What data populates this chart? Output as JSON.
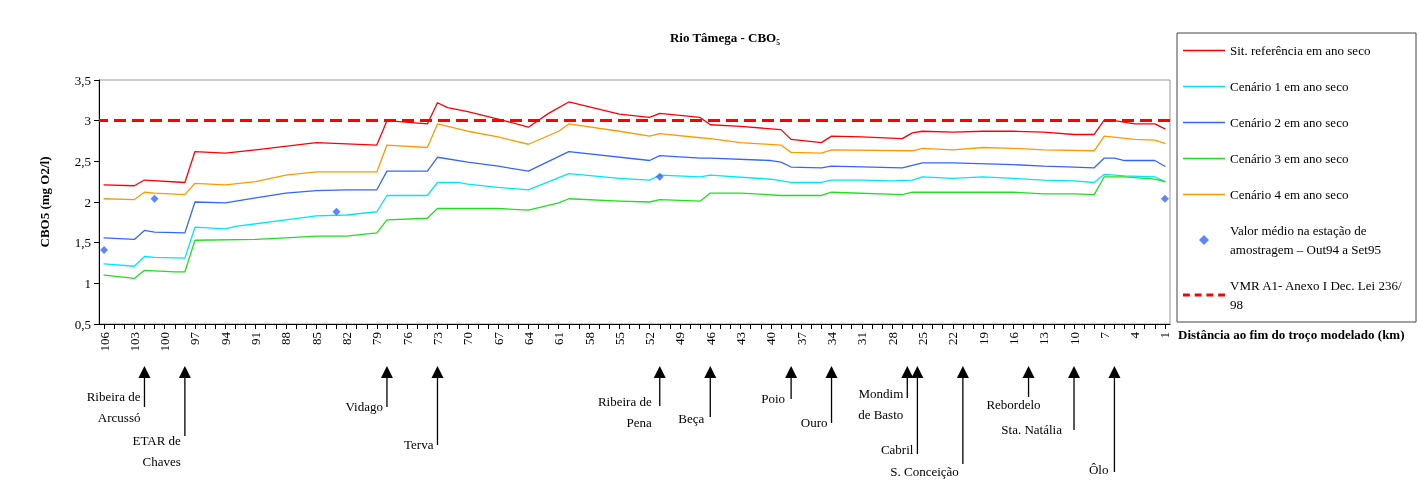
{
  "chart_data": {
    "type": "line",
    "title": "Rio Tâmega - CBO₅",
    "xlabel": "Distância ao fim do troço modelado (km)",
    "ylabel": "CBO5 (mg O2/l)",
    "xlim": [
      106.5,
      0.5
    ],
    "xticks": [
      106,
      {
        "value": 105,
        "label": null
      },
      {
        "value": 104,
        "label": null
      },
      103,
      {
        "value": 102,
        "label": null
      },
      {
        "value": 101,
        "label": null
      },
      100,
      {
        "value": 99,
        "label": null
      },
      {
        "value": 98,
        "label": null
      },
      97,
      {
        "value": 96,
        "label": null
      },
      {
        "value": 95,
        "label": null
      },
      94,
      {
        "value": 93,
        "label": null
      },
      {
        "value": 92,
        "label": null
      },
      91,
      {
        "value": 90,
        "label": null
      },
      {
        "value": 89,
        "label": null
      },
      88,
      {
        "value": 87,
        "label": null
      },
      {
        "value": 86,
        "label": null
      },
      85,
      {
        "value": 84,
        "label": null
      },
      {
        "value": 83,
        "label": null
      },
      82,
      {
        "value": 81,
        "label": null
      },
      {
        "value": 80,
        "label": null
      },
      79,
      {
        "value": 78,
        "label": null
      },
      {
        "value": 77,
        "label": null
      },
      76,
      {
        "value": 75,
        "label": null
      },
      {
        "value": 74,
        "label": null
      },
      73,
      {
        "value": 72,
        "label": null
      },
      {
        "value": 71,
        "label": null
      },
      70,
      {
        "value": 69,
        "label": null
      },
      {
        "value": 68,
        "label": null
      },
      67,
      {
        "value": 66,
        "label": null
      },
      {
        "value": 65,
        "label": null
      },
      64,
      {
        "value": 63,
        "label": null
      },
      {
        "value": 62,
        "label": null
      },
      61,
      {
        "value": 60,
        "label": null
      },
      {
        "value": 59,
        "label": null
      },
      58,
      {
        "value": 57,
        "label": null
      },
      {
        "value": 56,
        "label": null
      },
      55,
      {
        "value": 54,
        "label": null
      },
      {
        "value": 53,
        "label": null
      },
      52,
      {
        "value": 51,
        "label": null
      },
      {
        "value": 50,
        "label": null
      },
      49,
      {
        "value": 48,
        "label": null
      },
      {
        "value": 47,
        "label": null
      },
      46,
      {
        "value": 45,
        "label": null
      },
      {
        "value": 44,
        "label": null
      },
      43,
      {
        "value": 42,
        "label": null
      },
      {
        "value": 41,
        "label": null
      },
      40,
      {
        "value": 39,
        "label": null
      },
      {
        "value": 38,
        "label": null
      },
      37,
      {
        "value": 36,
        "label": null
      },
      {
        "value": 35,
        "label": null
      },
      34,
      {
        "value": 33,
        "label": null
      },
      {
        "value": 32,
        "label": null
      },
      31,
      {
        "value": 30,
        "label": null
      },
      {
        "value": 29,
        "label": null
      },
      28,
      {
        "value": 27,
        "label": null
      },
      {
        "value": 26,
        "label": null
      },
      25,
      {
        "value": 24,
        "label": null
      },
      {
        "value": 23,
        "label": null
      },
      22,
      {
        "value": 21,
        "label": null
      },
      {
        "value": 20,
        "label": null
      },
      19,
      {
        "value": 18,
        "label": null
      },
      {
        "value": 17,
        "label": null
      },
      16,
      {
        "value": 15,
        "label": null
      },
      {
        "value": 14,
        "label": null
      },
      13,
      {
        "value": 12,
        "label": null
      },
      {
        "value": 11,
        "label": null
      },
      10,
      {
        "value": 9,
        "label": null
      },
      {
        "value": 8,
        "label": null
      },
      7,
      {
        "value": 6,
        "label": null
      },
      {
        "value": 5,
        "label": null
      },
      4,
      {
        "value": 3,
        "label": null
      },
      {
        "value": 2,
        "label": null
      },
      1
    ],
    "ylim": [
      0.5,
      3.5
    ],
    "yticks": [
      {
        "value": 0.5,
        "label": "0,5"
      },
      1,
      {
        "value": 1.5,
        "label": "1,5"
      },
      2,
      {
        "value": 2.5,
        "label": "2,5"
      },
      3,
      {
        "value": 3.5,
        "label": "3,5"
      }
    ],
    "legend": "right",
    "marker": "none",
    "line_style": "solid",
    "series": [
      {
        "name": "Sit. referência em ano seco",
        "color": "#ff0000",
        "x": [
          106,
          103,
          102,
          98,
          97,
          94,
          91,
          85,
          79,
          78,
          74,
          73,
          72,
          70,
          67,
          64,
          62,
          60,
          55,
          52,
          51,
          47,
          46,
          43,
          40,
          39,
          38,
          35,
          34,
          31,
          27,
          26,
          25,
          22,
          19,
          16,
          13,
          10,
          8,
          7,
          6,
          4,
          2,
          1
        ],
        "values": [
          2.21,
          2.2,
          2.27,
          2.24,
          2.62,
          2.6,
          2.64,
          2.73,
          2.7,
          3.0,
          2.96,
          3.22,
          3.16,
          3.11,
          3.02,
          2.92,
          3.09,
          3.23,
          3.08,
          3.04,
          3.09,
          3.04,
          2.95,
          2.93,
          2.9,
          2.89,
          2.77,
          2.73,
          2.81,
          2.8,
          2.78,
          2.85,
          2.87,
          2.86,
          2.87,
          2.87,
          2.86,
          2.83,
          2.83,
          3.01,
          3.0,
          2.96,
          2.96,
          2.9
        ]
      },
      {
        "name": "Cenário 1 em ano seco",
        "color": "#00e5ff",
        "x": [
          106,
          103,
          102,
          101,
          98,
          97,
          94,
          93,
          88,
          85,
          82,
          79,
          78,
          74,
          73,
          71,
          70,
          67,
          64,
          60,
          55,
          52,
          51,
          47,
          46,
          40,
          38,
          35,
          34,
          31,
          28,
          26,
          25,
          22,
          19,
          16,
          13,
          10,
          8,
          7,
          5,
          2,
          1
        ],
        "values": [
          1.24,
          1.21,
          1.33,
          1.32,
          1.31,
          1.69,
          1.67,
          1.7,
          1.78,
          1.83,
          1.84,
          1.88,
          2.08,
          2.08,
          2.24,
          2.24,
          2.22,
          2.18,
          2.15,
          2.35,
          2.29,
          2.27,
          2.33,
          2.31,
          2.33,
          2.28,
          2.24,
          2.24,
          2.27,
          2.27,
          2.26,
          2.27,
          2.31,
          2.29,
          2.31,
          2.29,
          2.27,
          2.26,
          2.24,
          2.34,
          2.32,
          2.31,
          2.25
        ]
      },
      {
        "name": "Cenário 2 em ano seco",
        "color": "#3366ff",
        "x": [
          106,
          103,
          102,
          101,
          98,
          97,
          94,
          91,
          88,
          85,
          82,
          79,
          78,
          74,
          73,
          70,
          67,
          64,
          60,
          52,
          51,
          47,
          46,
          40,
          39,
          38,
          35,
          34,
          27,
          25,
          22,
          16,
          13,
          10,
          8,
          7,
          6,
          5,
          2,
          1
        ],
        "values": [
          1.56,
          1.54,
          1.65,
          1.63,
          1.62,
          2.0,
          1.99,
          2.05,
          2.11,
          2.14,
          2.15,
          2.15,
          2.38,
          2.38,
          2.55,
          2.49,
          2.44,
          2.38,
          2.62,
          2.51,
          2.57,
          2.54,
          2.54,
          2.51,
          2.49,
          2.43,
          2.42,
          2.44,
          2.42,
          2.48,
          2.48,
          2.46,
          2.44,
          2.43,
          2.42,
          2.54,
          2.54,
          2.51,
          2.51,
          2.44
        ]
      },
      {
        "name": "Cenário 3 em ano seco",
        "color": "#22dd22",
        "x": [
          106,
          103,
          102,
          99,
          98,
          97,
          91,
          88,
          85,
          82,
          79,
          78,
          74,
          73,
          67,
          64,
          61,
          60,
          55,
          52,
          51,
          47,
          46,
          43,
          39,
          35,
          34,
          27,
          26,
          22,
          16,
          13,
          10,
          8,
          7,
          5,
          2,
          1
        ],
        "values": [
          1.1,
          1.06,
          1.16,
          1.14,
          1.14,
          1.53,
          1.54,
          1.56,
          1.58,
          1.58,
          1.62,
          1.78,
          1.8,
          1.92,
          1.92,
          1.9,
          1.99,
          2.04,
          2.01,
          2.0,
          2.03,
          2.01,
          2.11,
          2.11,
          2.08,
          2.08,
          2.12,
          2.09,
          2.12,
          2.12,
          2.12,
          2.1,
          2.1,
          2.09,
          2.31,
          2.31,
          2.28,
          2.25
        ]
      },
      {
        "name": "Cenário 4 em ano seco",
        "color": "#ff9900",
        "x": [
          106,
          103,
          102,
          101,
          98,
          97,
          94,
          91,
          88,
          85,
          79,
          78,
          74,
          73,
          70,
          67,
          64,
          61,
          60,
          55,
          52,
          51,
          47,
          46,
          43,
          39,
          38,
          35,
          34,
          26,
          25,
          22,
          19,
          16,
          13,
          8,
          7,
          4,
          2,
          1
        ],
        "values": [
          2.04,
          2.03,
          2.12,
          2.11,
          2.09,
          2.23,
          2.21,
          2.25,
          2.33,
          2.37,
          2.37,
          2.7,
          2.67,
          2.96,
          2.87,
          2.8,
          2.71,
          2.87,
          2.96,
          2.87,
          2.81,
          2.84,
          2.79,
          2.78,
          2.73,
          2.7,
          2.61,
          2.6,
          2.64,
          2.63,
          2.66,
          2.64,
          2.67,
          2.66,
          2.64,
          2.63,
          2.81,
          2.77,
          2.76,
          2.72
        ]
      },
      {
        "name": "Valor médio na estação de amostragem – Out94 a Set95",
        "type": "scatter",
        "marker": "diamond",
        "color": "#3366ff",
        "x": [
          106,
          101,
          83,
          51,
          1
        ],
        "values": [
          1.41,
          2.04,
          1.88,
          2.31,
          2.04
        ]
      }
    ],
    "ref_lines": [
      {
        "axis": "y",
        "value": 3,
        "label": "VMR A1- Anexo I Dec. Lei 236/98",
        "color": "#ff0000",
        "line_style": "dashed"
      }
    ],
    "annotations": [
      "Ribeira de\nArcussó",
      "ETAR de\nChaves",
      "Vidago",
      "Terva",
      "Ribeira de\nPena",
      "Beça",
      "Poio",
      "Ouro",
      "Mondim\nde Basto",
      "Cabril",
      "S. Conceição",
      "Rebordelo",
      "Sta. Natália",
      "Ôlo"
    ]
  }
}
